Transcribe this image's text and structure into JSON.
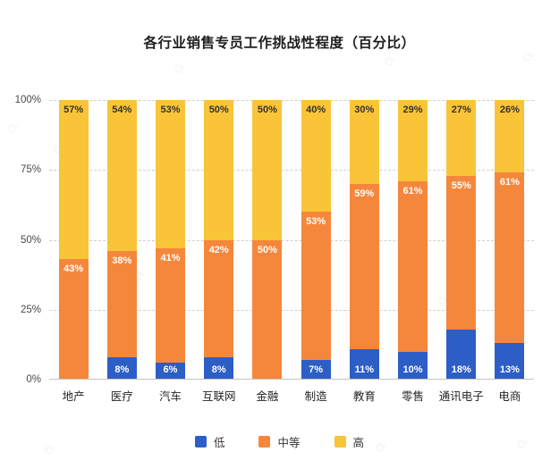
{
  "title": "各行业销售专员工作挑战性程度（百分比）",
  "colors": {
    "low": "#2C5EC5",
    "medium": "#F5873C",
    "high": "#F9C437",
    "label_on_high": "#333333",
    "label_on_low_medium": "#FFFFFF",
    "axis_text": "#4A4A4A",
    "category_text": "#262626",
    "grid_dashed": "#D0D0D0",
    "baseline": "#C4C4C4"
  },
  "chart_data": {
    "type": "bar",
    "stacked": true,
    "percentage": true,
    "title": "各行业销售专员工作挑战性程度（百分比）",
    "categories": [
      "地产",
      "医疗",
      "汽车",
      "互联网",
      "金融",
      "制造",
      "教育",
      "零售",
      "通讯电子",
      "电商"
    ],
    "series": [
      {
        "name": "低",
        "color_key": "low",
        "values": [
          0,
          8,
          6,
          8,
          0,
          7,
          11,
          10,
          18,
          13
        ]
      },
      {
        "name": "中等",
        "color_key": "medium",
        "values": [
          43,
          38,
          41,
          42,
          50,
          53,
          59,
          61,
          55,
          61
        ]
      },
      {
        "name": "高",
        "color_key": "high",
        "values": [
          57,
          54,
          53,
          50,
          50,
          40,
          30,
          29,
          27,
          26
        ]
      }
    ],
    "y_ticks": [
      "0%",
      "25%",
      "50%",
      "75%",
      "100%"
    ],
    "ylim": [
      0,
      100
    ],
    "grid": true,
    "legend_position": "bottom",
    "value_label_suffix": "%"
  },
  "legend": {
    "items": [
      {
        "label": "低"
      },
      {
        "label": "中等"
      },
      {
        "label": "高"
      }
    ]
  },
  "watermark": {
    "logo_glyph": "⟳"
  }
}
